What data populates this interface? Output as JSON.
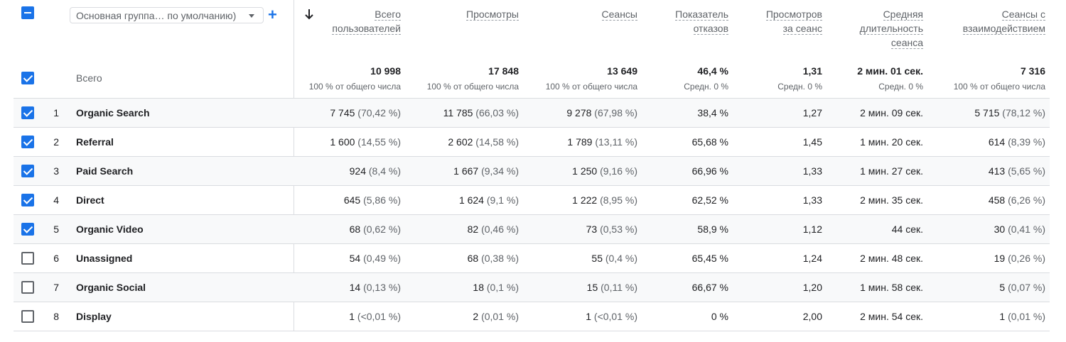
{
  "header": {
    "dimension_select": "Основная группа… по умолчанию)",
    "add_icon": "plus-icon",
    "sort_icon": "arrow-down-icon",
    "columns": [
      [
        "Всего",
        "пользователей"
      ],
      [
        "Просмотры"
      ],
      [
        "Сеансы"
      ],
      [
        "Показатель",
        "отказов"
      ],
      [
        "Просмотров",
        "за сеанс"
      ],
      [
        "Средняя",
        "длительность",
        "сеанса"
      ],
      [
        "Сеансы с",
        "взаимодействием"
      ]
    ]
  },
  "totals": {
    "label": "Всего",
    "values": [
      "10 998",
      "17 848",
      "13 649",
      "46,4 %",
      "1,31",
      "2 мин. 01 сек.",
      "7 316"
    ],
    "subs": [
      "100 % от общего числа",
      "100 % от общего числа",
      "100 % от общего числа",
      "Средн. 0 %",
      "Средн. 0 %",
      "Средн. 0 %",
      "100 % от общего числа"
    ]
  },
  "rows": [
    {
      "idx": "1",
      "name": "Organic Search",
      "checked": true,
      "cells": [
        [
          "7 745",
          "(70,42 %)"
        ],
        [
          "11 785",
          "(66,03 %)"
        ],
        [
          "9 278",
          "(67,98 %)"
        ],
        [
          "38,4 %",
          ""
        ],
        [
          "1,27",
          ""
        ],
        [
          "2 мин. 09 сек.",
          ""
        ],
        [
          "5 715",
          "(78,12 %)"
        ]
      ]
    },
    {
      "idx": "2",
      "name": "Referral",
      "checked": true,
      "cells": [
        [
          "1 600",
          "(14,55 %)"
        ],
        [
          "2 602",
          "(14,58 %)"
        ],
        [
          "1 789",
          "(13,11 %)"
        ],
        [
          "65,68 %",
          ""
        ],
        [
          "1,45",
          ""
        ],
        [
          "1 мин. 20 сек.",
          ""
        ],
        [
          "614",
          "(8,39 %)"
        ]
      ]
    },
    {
      "idx": "3",
      "name": "Paid Search",
      "checked": true,
      "cells": [
        [
          "924",
          "(8,4 %)"
        ],
        [
          "1 667",
          "(9,34 %)"
        ],
        [
          "1 250",
          "(9,16 %)"
        ],
        [
          "66,96 %",
          ""
        ],
        [
          "1,33",
          ""
        ],
        [
          "1 мин. 27 сек.",
          ""
        ],
        [
          "413",
          "(5,65 %)"
        ]
      ]
    },
    {
      "idx": "4",
      "name": "Direct",
      "checked": true,
      "cells": [
        [
          "645",
          "(5,86 %)"
        ],
        [
          "1 624",
          "(9,1 %)"
        ],
        [
          "1 222",
          "(8,95 %)"
        ],
        [
          "62,52 %",
          ""
        ],
        [
          "1,33",
          ""
        ],
        [
          "2 мин. 35 сек.",
          ""
        ],
        [
          "458",
          "(6,26 %)"
        ]
      ]
    },
    {
      "idx": "5",
      "name": "Organic Video",
      "checked": true,
      "cells": [
        [
          "68",
          "(0,62 %)"
        ],
        [
          "82",
          "(0,46 %)"
        ],
        [
          "73",
          "(0,53 %)"
        ],
        [
          "58,9 %",
          ""
        ],
        [
          "1,12",
          ""
        ],
        [
          "44 сек.",
          ""
        ],
        [
          "30",
          "(0,41 %)"
        ]
      ]
    },
    {
      "idx": "6",
      "name": "Unassigned",
      "checked": false,
      "cells": [
        [
          "54",
          "(0,49 %)"
        ],
        [
          "68",
          "(0,38 %)"
        ],
        [
          "55",
          "(0,4 %)"
        ],
        [
          "65,45 %",
          ""
        ],
        [
          "1,24",
          ""
        ],
        [
          "2 мин. 48 сек.",
          ""
        ],
        [
          "19",
          "(0,26 %)"
        ]
      ]
    },
    {
      "idx": "7",
      "name": "Organic Social",
      "checked": false,
      "cells": [
        [
          "14",
          "(0,13 %)"
        ],
        [
          "18",
          "(0,1 %)"
        ],
        [
          "15",
          "(0,11 %)"
        ],
        [
          "66,67 %",
          ""
        ],
        [
          "1,20",
          ""
        ],
        [
          "1 мин. 58 сек.",
          ""
        ],
        [
          "5",
          "(0,07 %)"
        ]
      ]
    },
    {
      "idx": "8",
      "name": "Display",
      "checked": false,
      "cells": [
        [
          "1",
          "(<0,01 %)"
        ],
        [
          "2",
          "(0,01 %)"
        ],
        [
          "1",
          "(<0,01 %)"
        ],
        [
          "0 %",
          ""
        ],
        [
          "2,00",
          ""
        ],
        [
          "2 мин. 54 сек.",
          ""
        ],
        [
          "1",
          "(0,01 %)"
        ]
      ]
    }
  ],
  "colors": {
    "accent": "#1a73e8",
    "border": "#dadce0",
    "muted": "#5f6368",
    "row_alt": "#f8f9fa"
  }
}
